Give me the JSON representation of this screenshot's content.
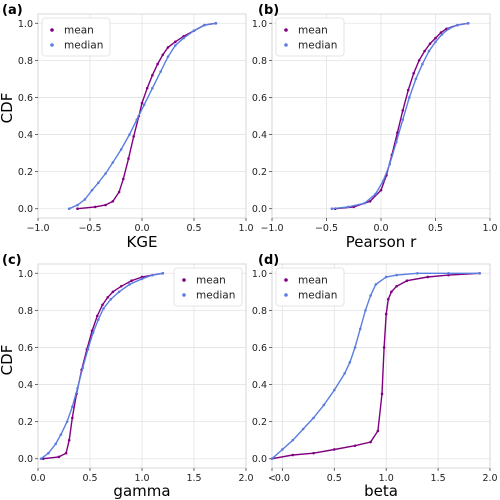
{
  "chart_data": [
    {
      "type": "line",
      "panel_label": "(a)",
      "title": "",
      "xlabel": "KGE",
      "ylabel": "CDF",
      "xlim": [
        -1.0,
        1.0
      ],
      "ylim": [
        -0.05,
        1.05
      ],
      "xticks": [
        "−1.0",
        "−0.5",
        "0.0",
        "0.5",
        "1.0"
      ],
      "xtick_values": [
        -1.0,
        -0.5,
        0.0,
        0.5,
        1.0
      ],
      "yticks": [
        "0.0",
        "0.2",
        "0.4",
        "0.6",
        "0.8",
        "1.0"
      ],
      "ytick_values": [
        0.0,
        0.2,
        0.4,
        0.6,
        0.8,
        1.0
      ],
      "grid": true,
      "legend_position": "top-left",
      "series": [
        {
          "name": "mean",
          "color": "#800080",
          "x": [
            -0.62,
            -0.45,
            -0.35,
            -0.28,
            -0.22,
            -0.18,
            -0.13,
            -0.08,
            -0.03,
            0.0,
            0.05,
            0.1,
            0.15,
            0.2,
            0.25,
            0.32,
            0.4,
            0.5,
            0.6,
            0.71
          ],
          "y": [
            0.0,
            0.01,
            0.02,
            0.04,
            0.09,
            0.16,
            0.27,
            0.39,
            0.5,
            0.57,
            0.65,
            0.72,
            0.78,
            0.83,
            0.87,
            0.9,
            0.93,
            0.96,
            0.99,
            1.0
          ]
        },
        {
          "name": "median",
          "color": "#5a7ee0",
          "x": [
            -0.7,
            -0.62,
            -0.55,
            -0.48,
            -0.42,
            -0.35,
            -0.28,
            -0.2,
            -0.12,
            -0.05,
            0.02,
            0.1,
            0.18,
            0.25,
            0.32,
            0.4,
            0.5,
            0.6,
            0.71
          ],
          "y": [
            0.0,
            0.02,
            0.05,
            0.1,
            0.14,
            0.19,
            0.25,
            0.32,
            0.4,
            0.48,
            0.56,
            0.65,
            0.74,
            0.82,
            0.88,
            0.92,
            0.96,
            0.99,
            1.0
          ]
        }
      ]
    },
    {
      "type": "line",
      "panel_label": "(b)",
      "title": "",
      "xlabel": "Pearson r",
      "ylabel": "",
      "xlim": [
        -1.0,
        1.0
      ],
      "ylim": [
        -0.05,
        1.05
      ],
      "xticks": [
        "−1.0",
        "−0.5",
        "0.0",
        "0.5",
        "1.0"
      ],
      "xtick_values": [
        -1.0,
        -0.5,
        0.0,
        0.5,
        1.0
      ],
      "yticks": [
        "0.0",
        "0.2",
        "0.4",
        "0.6",
        "0.8",
        "1.0"
      ],
      "ytick_values": [
        0.0,
        0.2,
        0.4,
        0.6,
        0.8,
        1.0
      ],
      "grid": true,
      "legend_position": "top-left",
      "series": [
        {
          "name": "mean",
          "color": "#800080",
          "x": [
            -0.42,
            -0.25,
            -0.1,
            0.0,
            0.05,
            0.1,
            0.15,
            0.2,
            0.25,
            0.3,
            0.35,
            0.4,
            0.45,
            0.5,
            0.55,
            0.6,
            0.7,
            0.8
          ],
          "y": [
            0.0,
            0.01,
            0.04,
            0.1,
            0.18,
            0.29,
            0.41,
            0.53,
            0.64,
            0.73,
            0.8,
            0.85,
            0.89,
            0.92,
            0.95,
            0.97,
            0.99,
            1.0
          ]
        },
        {
          "name": "median",
          "color": "#5a7ee0",
          "x": [
            -0.45,
            -0.3,
            -0.15,
            -0.05,
            0.02,
            0.08,
            0.14,
            0.2,
            0.26,
            0.32,
            0.38,
            0.44,
            0.5,
            0.56,
            0.62,
            0.7,
            0.8
          ],
          "y": [
            0.0,
            0.01,
            0.03,
            0.08,
            0.15,
            0.24,
            0.36,
            0.48,
            0.6,
            0.7,
            0.78,
            0.85,
            0.9,
            0.94,
            0.97,
            0.99,
            1.0
          ]
        }
      ]
    },
    {
      "type": "line",
      "panel_label": "(c)",
      "title": "",
      "xlabel": "gamma",
      "ylabel": "CDF",
      "xlim": [
        0.0,
        2.0
      ],
      "ylim": [
        -0.05,
        1.05
      ],
      "xticks": [
        "0.0",
        "0.5",
        "1.0",
        "1.5",
        "2.0"
      ],
      "xtick_values": [
        0.0,
        0.5,
        1.0,
        1.5,
        2.0
      ],
      "yticks": [
        "0.0",
        "0.2",
        "0.4",
        "0.6",
        "0.8",
        "1.0"
      ],
      "ytick_values": [
        0.0,
        0.2,
        0.4,
        0.6,
        0.8,
        1.0
      ],
      "grid": true,
      "legend_position": "top-right",
      "series": [
        {
          "name": "mean",
          "color": "#800080",
          "x": [
            0.05,
            0.2,
            0.27,
            0.3,
            0.33,
            0.37,
            0.42,
            0.47,
            0.52,
            0.57,
            0.62,
            0.67,
            0.72,
            0.8,
            0.9,
            1.0,
            1.1,
            1.2
          ],
          "y": [
            0.0,
            0.01,
            0.03,
            0.1,
            0.22,
            0.35,
            0.48,
            0.59,
            0.69,
            0.77,
            0.83,
            0.87,
            0.9,
            0.93,
            0.96,
            0.98,
            0.99,
            1.0
          ]
        },
        {
          "name": "median",
          "color": "#5a7ee0",
          "x": [
            0.03,
            0.1,
            0.17,
            0.22,
            0.28,
            0.33,
            0.38,
            0.43,
            0.48,
            0.53,
            0.58,
            0.63,
            0.7,
            0.78,
            0.88,
            1.0,
            1.1,
            1.2
          ],
          "y": [
            0.0,
            0.03,
            0.08,
            0.13,
            0.2,
            0.28,
            0.38,
            0.49,
            0.59,
            0.68,
            0.75,
            0.81,
            0.86,
            0.9,
            0.94,
            0.97,
            0.99,
            1.0
          ]
        }
      ]
    },
    {
      "type": "line",
      "panel_label": "(d)",
      "title": "",
      "xlabel": "beta",
      "ylabel": "",
      "xlim": [
        -0.1,
        2.0
      ],
      "ylim": [
        -0.05,
        1.05
      ],
      "xticks": [
        "<",
        "0.0",
        "0.5",
        "1.0",
        "1.5",
        "2.0"
      ],
      "xtick_values": [
        -0.1,
        0.0,
        0.5,
        1.0,
        1.5,
        2.0
      ],
      "yticks": [
        "0.0",
        "0.2",
        "0.4",
        "0.6",
        "0.8",
        "1.0"
      ],
      "ytick_values": [
        0.0,
        0.2,
        0.4,
        0.6,
        0.8,
        1.0
      ],
      "grid": true,
      "legend_position": "top-left",
      "series": [
        {
          "name": "mean",
          "color": "#800080",
          "x": [
            -0.1,
            0.1,
            0.3,
            0.5,
            0.7,
            0.85,
            0.92,
            0.96,
            0.98,
            1.0,
            1.02,
            1.05,
            1.1,
            1.2,
            1.4,
            1.6,
            1.9
          ],
          "y": [
            0.0,
            0.02,
            0.03,
            0.05,
            0.07,
            0.09,
            0.15,
            0.35,
            0.6,
            0.78,
            0.86,
            0.9,
            0.93,
            0.96,
            0.98,
            0.99,
            1.0
          ]
        },
        {
          "name": "median",
          "color": "#5a7ee0",
          "x": [
            -0.1,
            0.0,
            0.1,
            0.2,
            0.3,
            0.4,
            0.5,
            0.6,
            0.65,
            0.7,
            0.75,
            0.8,
            0.85,
            0.9,
            1.0,
            1.1,
            1.3,
            1.6,
            1.9
          ],
          "y": [
            0.0,
            0.05,
            0.1,
            0.16,
            0.22,
            0.29,
            0.37,
            0.46,
            0.52,
            0.6,
            0.7,
            0.8,
            0.88,
            0.94,
            0.98,
            0.99,
            1.0,
            1.0,
            1.0
          ]
        }
      ]
    }
  ]
}
